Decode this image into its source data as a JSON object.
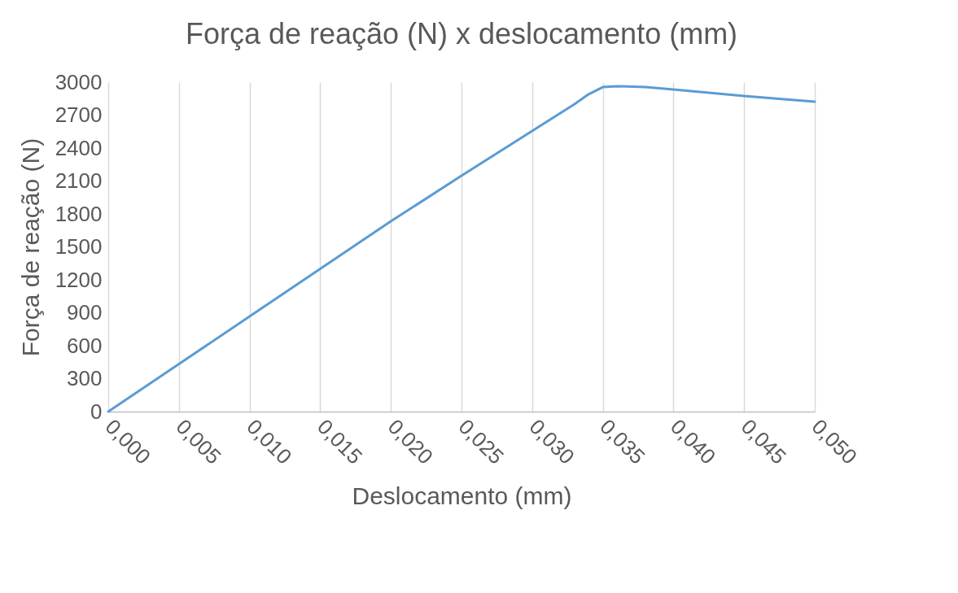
{
  "chart_data": {
    "type": "line",
    "title": "Força de reação (N) x deslocamento (mm)",
    "xlabel": "Deslocamento (mm)",
    "ylabel": "Força de reação (N)",
    "series": [
      {
        "color": "#5b9bd5",
        "x": [
          0,
          0.005,
          0.01,
          0.015,
          0.02,
          0.025,
          0.03,
          0.033,
          0.034,
          0.035,
          0.036,
          0.038,
          0.04,
          0.045,
          0.05
        ],
        "values": [
          0,
          433,
          867,
          1300,
          1733,
          2148,
          2555,
          2800,
          2890,
          2955,
          2963,
          2955,
          2933,
          2874,
          2822
        ]
      }
    ],
    "xlim": [
      0,
      0.05
    ],
    "xticks": [
      {
        "value": 0,
        "label": "0,000"
      },
      {
        "value": 0.005,
        "label": "0,005"
      },
      {
        "value": 0.01,
        "label": "0,010"
      },
      {
        "value": 0.015,
        "label": "0,015"
      },
      {
        "value": 0.02,
        "label": "0,020"
      },
      {
        "value": 0.025,
        "label": "0,025"
      },
      {
        "value": 0.03,
        "label": "0,030"
      },
      {
        "value": 0.035,
        "label": "0,035"
      },
      {
        "value": 0.04,
        "label": "0,040"
      },
      {
        "value": 0.045,
        "label": "0,045"
      },
      {
        "value": 0.05,
        "label": "0,050"
      }
    ],
    "ylim": [
      0,
      3000
    ],
    "yticks": [
      0,
      300,
      600,
      900,
      1200,
      1500,
      1800,
      2100,
      2400,
      2700,
      3000
    ],
    "grid": "x",
    "legend": false,
    "marker": "none",
    "line_style": "solid"
  }
}
